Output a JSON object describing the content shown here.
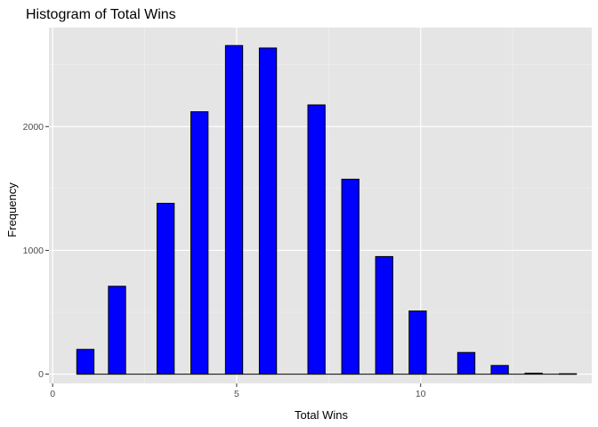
{
  "chart_data": {
    "type": "bar",
    "title": "Histogram of Total Wins",
    "xlabel": "Total Wins",
    "ylabel": "Frequency",
    "xlim": [
      -0.1,
      14.65
    ],
    "ylim": [
      -75,
      2800
    ],
    "x_ticks": [
      0,
      5,
      10
    ],
    "y_ticks": [
      0,
      1000,
      2000
    ],
    "x_minor": [
      2.5,
      7.5,
      12.5
    ],
    "y_minor": [
      500,
      1500,
      2500
    ],
    "bin_width": 0.467,
    "bins": [
      {
        "x": 0.89,
        "value": 200
      },
      {
        "x": 1.75,
        "value": 710
      },
      {
        "x": 3.07,
        "value": 1380
      },
      {
        "x": 3.99,
        "value": 2120
      },
      {
        "x": 4.93,
        "value": 2655
      },
      {
        "x": 5.85,
        "value": 2635
      },
      {
        "x": 7.17,
        "value": 2175
      },
      {
        "x": 8.09,
        "value": 1575
      },
      {
        "x": 9.01,
        "value": 950
      },
      {
        "x": 9.92,
        "value": 510
      },
      {
        "x": 11.24,
        "value": 175
      },
      {
        "x": 12.15,
        "value": 70
      },
      {
        "x": 13.07,
        "value": 8
      },
      {
        "x": 14.0,
        "value": 3
      }
    ],
    "grid": true,
    "colors": {
      "panel": "#e5e5e5",
      "grid_major": "#ffffff",
      "grid_minor": "#f2f2f2",
      "bar_fill": "#0000ff",
      "bar_stroke": "#000000",
      "tick_label": "#4d4d4d"
    }
  }
}
